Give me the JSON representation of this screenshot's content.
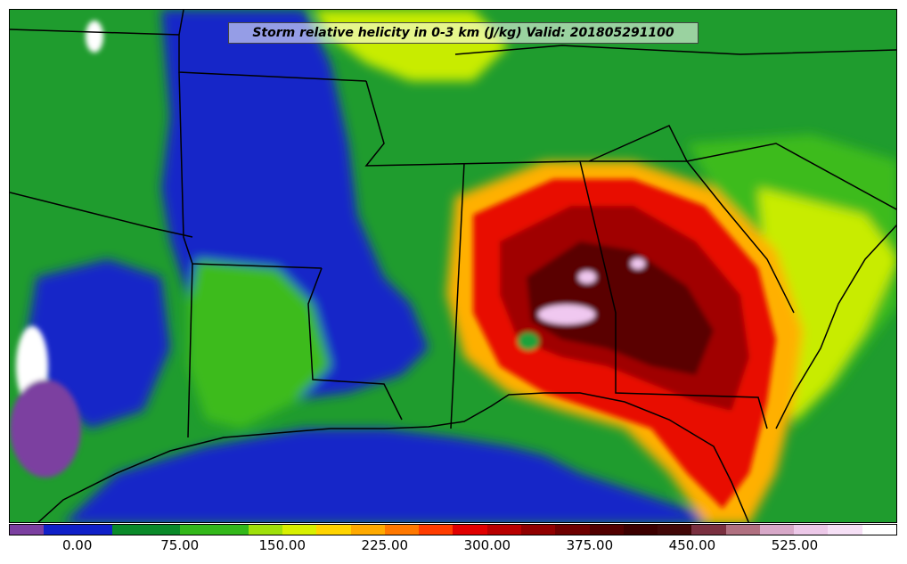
{
  "title": "Storm relative helicity in 0-3 km (J/kg) Valid: 201805291100",
  "colorbar": {
    "colors": [
      "#7b3fa0",
      "#1020c8",
      "#1020c8",
      "#0a8a2a",
      "#0a8a2a",
      "#33b81a",
      "#33b81a",
      "#9fe00a",
      "#d8f000",
      "#ffd400",
      "#ffaa00",
      "#ff7800",
      "#ff3c00",
      "#e00000",
      "#b80000",
      "#900000",
      "#6e0000",
      "#520000",
      "#3c0000",
      "#420808",
      "#7a3040",
      "#b07080",
      "#d7a8c8",
      "#ecc8e8",
      "#f6e0f6",
      "#ffffff"
    ],
    "ticks": [
      "0.00",
      "75.00",
      "150.00",
      "225.00",
      "300.00",
      "375.00",
      "450.00",
      "525.00"
    ],
    "tick_values": [
      0,
      75,
      150,
      225,
      300,
      375,
      450,
      525
    ],
    "vmin": -50,
    "vmax": 600
  }
}
